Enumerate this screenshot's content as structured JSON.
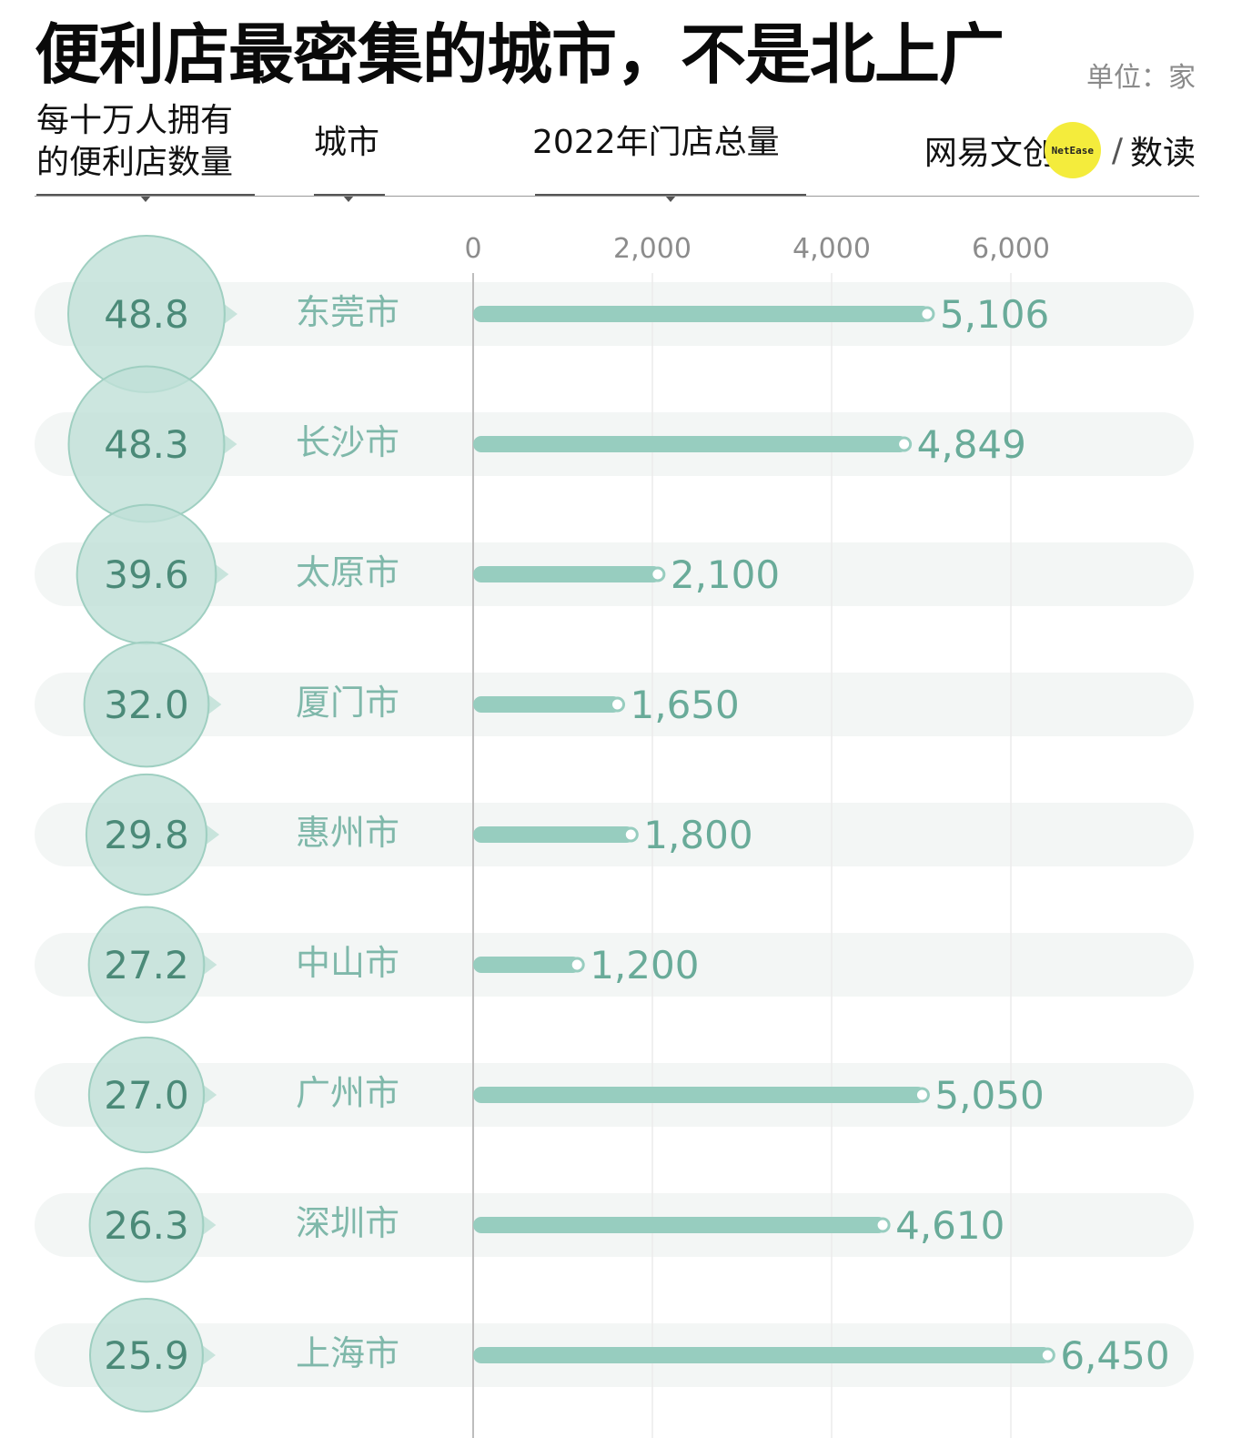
{
  "title": "便利店最密集的城市，不是北上广",
  "unit": "单位：家",
  "headers": {
    "density": "每十万人拥有\n的便利店数量",
    "city": "城市",
    "total": "2022年门店总量"
  },
  "brand": {
    "name": "网易文创",
    "badge": "NetEase",
    "separator": "/",
    "sub": "数读"
  },
  "colors": {
    "bar": "#97cdbf",
    "bubble": "#bfe0d7",
    "bubble_stroke": "#9fcfc1",
    "value_text": "#69ab99",
    "city_text": "#7fb8aa",
    "band": "#f3f6f5"
  },
  "chart_data": {
    "type": "bar",
    "orientation": "horizontal",
    "xlim": [
      0,
      8000
    ],
    "xticks": [
      0,
      2000,
      4000,
      6000
    ],
    "xtick_labels": [
      "0",
      "2,000",
      "4,000",
      "6,000"
    ],
    "grid": true,
    "categories": [
      "东莞市",
      "长沙市",
      "太原市",
      "厦门市",
      "惠州市",
      "中山市",
      "广州市",
      "深圳市",
      "上海市"
    ],
    "values": [
      5106,
      4849,
      2100,
      1650,
      1800,
      1200,
      5050,
      4610,
      6450
    ],
    "value_labels": [
      "5,106",
      "4,849",
      "2,100",
      "1,650",
      "1,800",
      "1,200",
      "5,050",
      "4,610",
      "6,450"
    ],
    "density": [
      48.8,
      48.3,
      39.6,
      32.0,
      29.8,
      27.2,
      27.0,
      26.3,
      25.9
    ],
    "density_labels": [
      "48.8",
      "48.3",
      "39.6",
      "32.0",
      "29.8",
      "27.2",
      "27.0",
      "26.3",
      "25.9"
    ]
  }
}
